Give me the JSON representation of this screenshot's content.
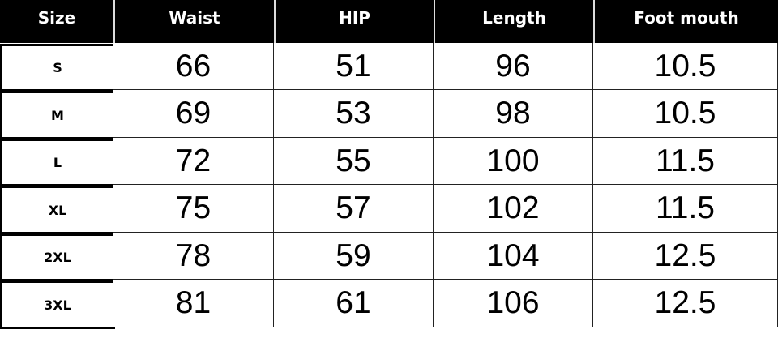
{
  "table": {
    "headers": [
      "Size",
      "Waist",
      "HIP",
      "Length",
      "Foot mouth"
    ],
    "rows": [
      [
        "S",
        "66",
        "51",
        "96",
        "10.5"
      ],
      [
        "M",
        "69",
        "53",
        "98",
        "10.5"
      ],
      [
        "L",
        "72",
        "55",
        "100",
        "11.5"
      ],
      [
        "XL",
        "75",
        "57",
        "102",
        "11.5"
      ],
      [
        "2XL",
        "78",
        "59",
        "104",
        "12.5"
      ],
      [
        "3XL",
        "81",
        "61",
        "106",
        "12.5"
      ]
    ]
  }
}
